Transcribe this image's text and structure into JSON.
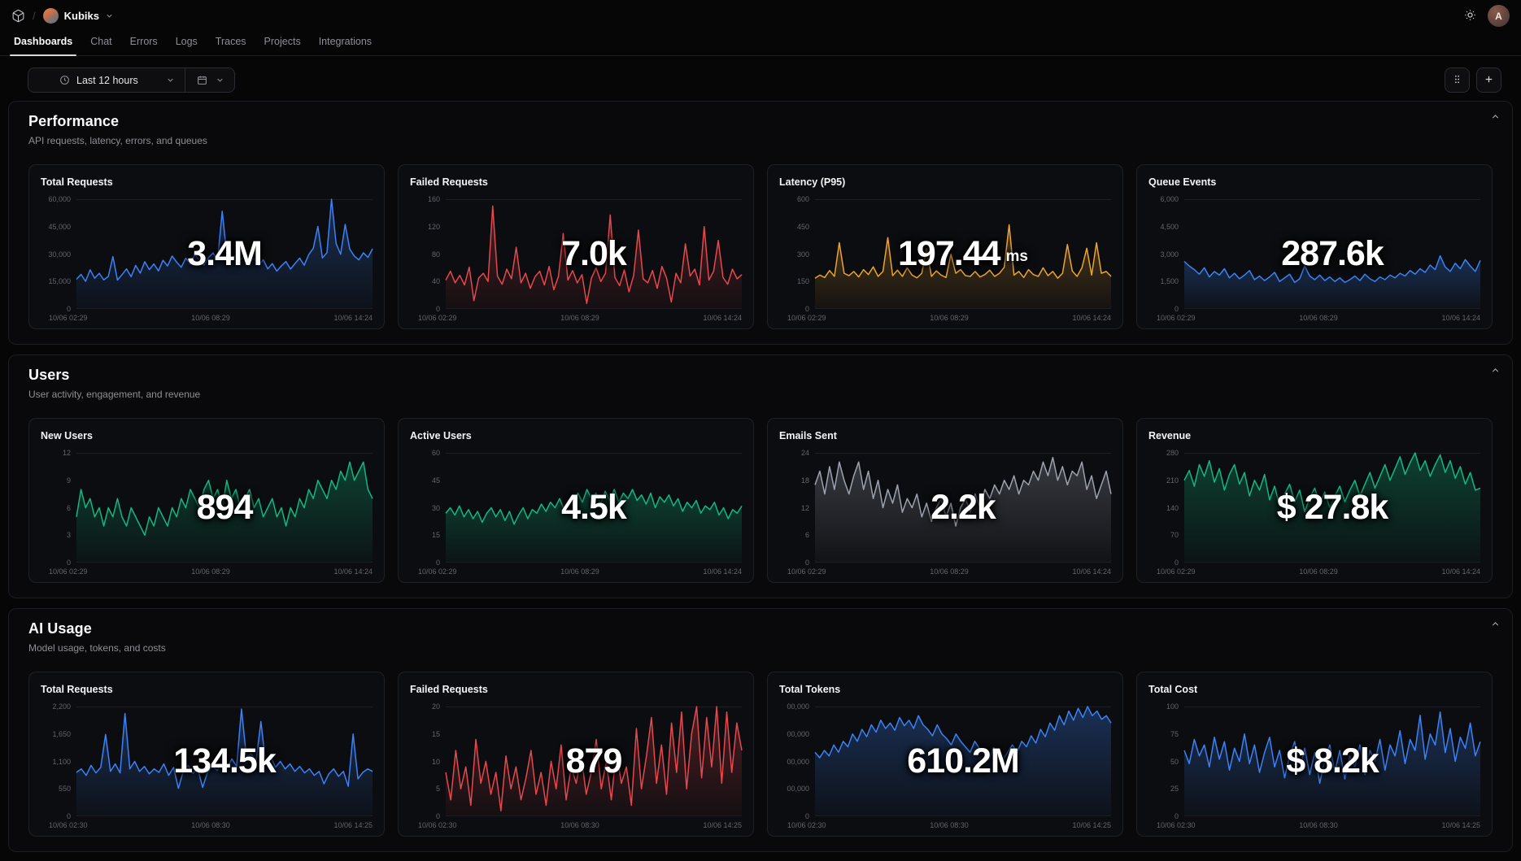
{
  "header": {
    "workspace": "Kubiks",
    "breadcrumb_separator": "/",
    "user_initial": "A",
    "tabs": [
      {
        "label": "Dashboards",
        "active": true
      },
      {
        "label": "Chat",
        "active": false
      },
      {
        "label": "Errors",
        "active": false
      },
      {
        "label": "Logs",
        "active": false
      },
      {
        "label": "Traces",
        "active": false
      },
      {
        "label": "Projects",
        "active": false
      },
      {
        "label": "Integrations",
        "active": false
      }
    ]
  },
  "toolbar": {
    "time_range": "Last 12 hours"
  },
  "sections": [
    {
      "title": "Performance",
      "subtitle": "API requests, latency, errors, and queues",
      "chart_ids": [
        0,
        1,
        2,
        3
      ]
    },
    {
      "title": "Users",
      "subtitle": "User activity, engagement, and revenue",
      "chart_ids": [
        4,
        5,
        6,
        7
      ]
    },
    {
      "title": "AI Usage",
      "subtitle": "Model usage, tokens, and costs",
      "chart_ids": [
        8,
        9,
        10,
        11
      ]
    }
  ],
  "chart_data": [
    {
      "type": "line",
      "section": "Performance",
      "title": "Total Requests",
      "big_value": "3.4M",
      "unit": "",
      "color": "#3b82f6",
      "ylim": [
        0,
        60000
      ],
      "yticks": [
        "60,000",
        "45,000",
        "30,000",
        "15,000",
        "0"
      ],
      "xticks": [
        "10/06 02:29",
        "10/06 08:29",
        "10/06 14:24"
      ],
      "values": [
        16200,
        18900,
        15100,
        21400,
        16800,
        19500,
        15900,
        17800,
        28600,
        15800,
        18700,
        21900,
        17600,
        23800,
        19600,
        25800,
        21500,
        24600,
        20800,
        26600,
        23500,
        28900,
        25600,
        22800,
        27700,
        24600,
        29800,
        26600,
        23900,
        28100,
        30600,
        26800,
        53400,
        29500,
        27900,
        29200,
        26800,
        29900,
        25900,
        27700,
        23800,
        26900,
        21900,
        24800,
        20700,
        23600,
        25900,
        21800,
        24900,
        27800,
        23900,
        29700,
        33200,
        45100,
        27900,
        30800,
        60200,
        35800,
        29900,
        46200,
        32700,
        28900,
        26800,
        30700,
        28200,
        32900
      ]
    },
    {
      "type": "line",
      "section": "Performance",
      "title": "Failed Requests",
      "big_value": "7.0k",
      "unit": "",
      "color": "#e5484d",
      "ylim": [
        0,
        160
      ],
      "yticks": [
        "160",
        "120",
        "80",
        "40",
        "0"
      ],
      "xticks": [
        "10/06 02:29",
        "10/06 08:29",
        "10/06 14:24"
      ],
      "values": [
        42,
        55,
        38,
        49,
        35,
        61,
        12,
        45,
        52,
        40,
        150,
        48,
        36,
        58,
        44,
        90,
        38,
        52,
        30,
        47,
        55,
        35,
        62,
        28,
        48,
        110,
        42,
        56,
        38,
        50,
        8,
        45,
        60,
        40,
        52,
        137,
        46,
        34,
        57,
        25,
        49,
        115,
        44,
        38,
        56,
        30,
        62,
        45,
        10,
        52,
        38,
        95,
        48,
        58,
        35,
        120,
        42,
        55,
        100,
        46,
        36,
        58,
        44,
        50
      ]
    },
    {
      "type": "line",
      "section": "Performance",
      "title": "Latency (P95)",
      "big_value": "197.44",
      "unit": "ms",
      "color": "#eba432",
      "ylim": [
        0,
        600
      ],
      "yticks": [
        "600",
        "450",
        "300",
        "150",
        "0"
      ],
      "xticks": [
        "10/06 02:29",
        "10/06 08:29",
        "10/06 14:24"
      ],
      "values": [
        168,
        185,
        172,
        210,
        178,
        362,
        195,
        182,
        205,
        175,
        215,
        188,
        230,
        178,
        205,
        390,
        182,
        212,
        178,
        225,
        185,
        170,
        195,
        330,
        178,
        208,
        185,
        172,
        300,
        195,
        215,
        182,
        178,
        205,
        175,
        188,
        212,
        178,
        195,
        228,
        460,
        185,
        205,
        172,
        215,
        188,
        178,
        225,
        182,
        205,
        168,
        195,
        352,
        208,
        178,
        225,
        332,
        185,
        362,
        195,
        205,
        178
      ]
    },
    {
      "type": "line",
      "section": "Performance",
      "title": "Queue Events",
      "big_value": "287.6k",
      "unit": "",
      "color": "#3b82f6",
      "ylim": [
        0,
        6000
      ],
      "yticks": [
        "6,000",
        "4,500",
        "3,000",
        "1,500",
        "0"
      ],
      "xticks": [
        "10/06 02:29",
        "10/06 08:29",
        "10/06 14:24"
      ],
      "values": [
        2600,
        2350,
        2150,
        1900,
        2250,
        1750,
        2050,
        1850,
        2200,
        1700,
        1950,
        1650,
        1850,
        2100,
        1600,
        1800,
        1550,
        1750,
        2000,
        1500,
        1700,
        1900,
        1450,
        1650,
        2350,
        1800,
        1600,
        1850,
        1550,
        1750,
        1500,
        1700,
        1450,
        1600,
        1800,
        1550,
        1900,
        1650,
        1500,
        1750,
        1600,
        1850,
        1700,
        1950,
        1800,
        2100,
        1900,
        2200,
        2000,
        2400,
        2150,
        2900,
        2300,
        2050,
        2500,
        2200,
        2700,
        2350,
        2050,
        2650
      ]
    },
    {
      "type": "line",
      "section": "Users",
      "title": "New Users",
      "big_value": "894",
      "unit": "",
      "color": "#10b981",
      "ylim": [
        0,
        12
      ],
      "yticks": [
        "12",
        "9",
        "6",
        "3",
        "0"
      ],
      "xticks": [
        "10/06 02:29",
        "10/06 08:29",
        "10/06 14:24"
      ],
      "values": [
        5,
        8,
        6,
        7,
        5,
        6,
        4,
        6,
        5,
        7,
        5,
        4,
        6,
        5,
        4,
        3,
        5,
        4,
        6,
        5,
        4,
        6,
        5,
        7,
        6,
        8,
        7,
        6,
        8,
        9,
        7,
        8,
        6,
        9,
        7,
        8,
        6,
        7,
        8,
        6,
        7,
        5,
        6,
        7,
        5,
        6,
        4,
        6,
        5,
        7,
        6,
        8,
        7,
        9,
        8,
        7,
        9,
        8,
        10,
        9,
        11,
        9,
        10,
        11,
        8,
        7
      ]
    },
    {
      "type": "line",
      "section": "Users",
      "title": "Active Users",
      "big_value": "4.5k",
      "unit": "",
      "color": "#10b981",
      "ylim": [
        0,
        60
      ],
      "yticks": [
        "60",
        "45",
        "30",
        "15",
        "0"
      ],
      "xticks": [
        "10/06 02:29",
        "10/06 08:29",
        "10/06 14:24"
      ],
      "values": [
        27,
        30,
        26,
        31,
        25,
        29,
        24,
        28,
        22,
        27,
        30,
        25,
        29,
        23,
        28,
        21,
        26,
        30,
        24,
        29,
        27,
        32,
        28,
        33,
        30,
        35,
        29,
        34,
        31,
        38,
        33,
        40,
        35,
        38,
        32,
        39,
        34,
        40,
        33,
        38,
        35,
        40,
        34,
        37,
        32,
        38,
        30,
        36,
        33,
        37,
        31,
        35,
        28,
        33,
        30,
        34,
        27,
        31,
        29,
        33,
        26,
        30,
        24,
        29,
        27,
        31
      ]
    },
    {
      "type": "line",
      "section": "Users",
      "title": "Emails Sent",
      "big_value": "2.2k",
      "unit": "",
      "color": "#9ca3af",
      "ylim": [
        0,
        24
      ],
      "yticks": [
        "24",
        "18",
        "12",
        "6",
        "0"
      ],
      "xticks": [
        "10/06 02:29",
        "10/06 08:29",
        "10/06 14:24"
      ],
      "values": [
        17,
        20,
        15,
        21,
        16,
        22,
        18,
        15,
        19,
        22,
        16,
        20,
        14,
        18,
        12,
        16,
        13,
        17,
        11,
        14,
        12,
        15,
        10,
        13,
        9,
        12,
        14,
        10,
        13,
        8,
        12,
        14,
        11,
        15,
        12,
        16,
        14,
        17,
        15,
        18,
        16,
        19,
        15,
        18,
        17,
        20,
        18,
        22,
        19,
        23,
        18,
        21,
        17,
        20,
        19,
        22,
        16,
        19,
        14,
        17,
        20,
        15
      ]
    },
    {
      "type": "line",
      "section": "Users",
      "title": "Revenue",
      "big_value": "$ 27.8k",
      "unit": "",
      "color": "#10b981",
      "ylim": [
        0,
        280
      ],
      "yticks": [
        "280",
        "210",
        "140",
        "70",
        "0"
      ],
      "xticks": [
        "10/06 02:29",
        "10/06 08:29",
        "10/06 14:24"
      ],
      "values": [
        210,
        235,
        195,
        250,
        220,
        260,
        205,
        240,
        185,
        225,
        250,
        200,
        230,
        170,
        210,
        185,
        225,
        160,
        195,
        145,
        175,
        200,
        155,
        185,
        130,
        165,
        190,
        150,
        180,
        140,
        170,
        195,
        155,
        185,
        210,
        170,
        200,
        230,
        190,
        220,
        250,
        210,
        240,
        270,
        225,
        255,
        280,
        235,
        260,
        220,
        250,
        275,
        230,
        260,
        215,
        245,
        200,
        230,
        185,
        190
      ]
    },
    {
      "type": "line",
      "section": "AI Usage",
      "title": "Total Requests",
      "big_value": "134.5k",
      "unit": "",
      "color": "#3b82f6",
      "ylim": [
        0,
        2200
      ],
      "yticks": [
        "2,200",
        "1,650",
        "1,100",
        "550",
        "0"
      ],
      "xticks": [
        "10/06 02:30",
        "10/06 08:30",
        "10/06 14:25"
      ],
      "values": [
        880,
        950,
        820,
        1020,
        870,
        980,
        1640,
        900,
        1050,
        870,
        2060,
        950,
        1100,
        900,
        1000,
        850,
        950,
        880,
        1050,
        820,
        980,
        560,
        900,
        1020,
        860,
        950,
        580,
        880,
        1000,
        920,
        1080,
        950,
        1150,
        1000,
        2150,
        1200,
        1250,
        1100,
        1900,
        1050,
        1200,
        980,
        1100,
        950,
        1050,
        900,
        1000,
        870,
        950,
        820,
        900,
        650,
        850,
        950,
        800,
        900,
        600,
        1650,
        750,
        880,
        950,
        900
      ]
    },
    {
      "type": "line",
      "section": "AI Usage",
      "title": "Failed Requests",
      "big_value": "879",
      "unit": "",
      "color": "#e5484d",
      "ylim": [
        0,
        20
      ],
      "yticks": [
        "20",
        "15",
        "10",
        "5",
        "0"
      ],
      "xticks": [
        "10/06 02:30",
        "10/06 08:30",
        "10/06 14:25"
      ],
      "values": [
        8,
        3,
        12,
        5,
        9,
        2,
        14,
        6,
        10,
        4,
        8,
        1,
        11,
        5,
        9,
        3,
        7,
        12,
        4,
        8,
        2,
        10,
        5,
        13,
        3,
        9,
        6,
        11,
        4,
        8,
        14,
        5,
        10,
        3,
        12,
        6,
        9,
        2,
        16,
        5,
        11,
        18,
        6,
        13,
        4,
        17,
        8,
        19,
        5,
        15,
        20,
        7,
        18,
        9,
        20,
        6,
        19,
        8,
        17,
        12
      ]
    },
    {
      "type": "line",
      "section": "AI Usage",
      "title": "Total Tokens",
      "big_value": "610.2M",
      "unit": "",
      "color": "#3b82f6",
      "ylim": [
        0,
        1200000
      ],
      "yticks": [
        "00,000",
        "00,000",
        "00,000",
        "00,000",
        "0"
      ],
      "xticks": [
        "10/06 02:30",
        "10/06 08:30",
        "10/06 14:25"
      ],
      "values": [
        700000,
        640000,
        720000,
        660000,
        780000,
        700000,
        820000,
        760000,
        900000,
        820000,
        950000,
        870000,
        1000000,
        920000,
        1050000,
        960000,
        1020000,
        940000,
        1080000,
        990000,
        1050000,
        960000,
        1100000,
        1000000,
        950000,
        880000,
        1000000,
        900000,
        850000,
        780000,
        900000,
        820000,
        760000,
        700000,
        820000,
        740000,
        680000,
        620000,
        750000,
        680000,
        620000,
        700000,
        780000,
        700000,
        820000,
        760000,
        880000,
        800000,
        950000,
        870000,
        1020000,
        940000,
        1100000,
        1000000,
        1150000,
        1050000,
        1180000,
        1080000,
        1200000,
        1100000,
        1150000,
        1060000,
        1100000,
        1020000
      ]
    },
    {
      "type": "line",
      "section": "AI Usage",
      "title": "Total Cost",
      "big_value": "$ 8.2k",
      "unit": "",
      "color": "#3b82f6",
      "ylim": [
        0,
        100
      ],
      "yticks": [
        "100",
        "75",
        "50",
        "25",
        "0"
      ],
      "xticks": [
        "10/06 02:30",
        "10/06 08:30",
        "10/06 14:25"
      ],
      "values": [
        60,
        48,
        70,
        55,
        65,
        45,
        72,
        52,
        68,
        42,
        62,
        50,
        75,
        48,
        65,
        40,
        58,
        72,
        45,
        60,
        35,
        55,
        68,
        42,
        62,
        38,
        58,
        30,
        52,
        65,
        40,
        60,
        34,
        55,
        45,
        65,
        38,
        60,
        50,
        70,
        42,
        65,
        55,
        78,
        48,
        70,
        60,
        92,
        52,
        75,
        65,
        95,
        58,
        80,
        50,
        72,
        62,
        85,
        55,
        68
      ]
    }
  ]
}
